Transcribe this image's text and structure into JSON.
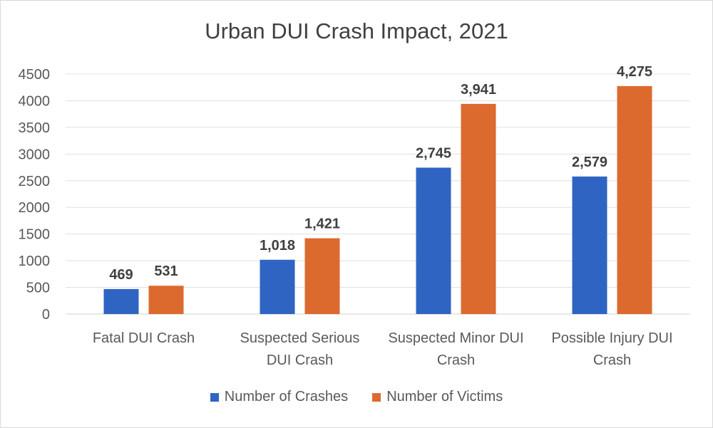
{
  "chart_data": {
    "type": "bar",
    "title": "Urban DUI Crash Impact, 2021",
    "xlabel": "",
    "ylabel": "",
    "ylim": [
      0,
      4500
    ],
    "yticks": [
      0,
      500,
      1000,
      1500,
      2000,
      2500,
      3000,
      3500,
      4000,
      4500
    ],
    "grid": true,
    "legend_position": "bottom",
    "categories": [
      [
        "Fatal DUI Crash"
      ],
      [
        "Suspected Serious",
        "DUI Crash"
      ],
      [
        "Suspected Minor DUI",
        "Crash"
      ],
      [
        "Possible Injury DUI",
        "Crash"
      ]
    ],
    "series": [
      {
        "name": "Number of Crashes",
        "color": "#2f64c2",
        "values": [
          469,
          1018,
          2745,
          2579
        ],
        "labels": [
          "469",
          "1,018",
          "2,745",
          "2,579"
        ]
      },
      {
        "name": "Number of Victims",
        "color": "#dc6a2e",
        "values": [
          531,
          1421,
          3941,
          4275
        ],
        "labels": [
          "531",
          "1,421",
          "3,941",
          "4,275"
        ]
      }
    ]
  }
}
